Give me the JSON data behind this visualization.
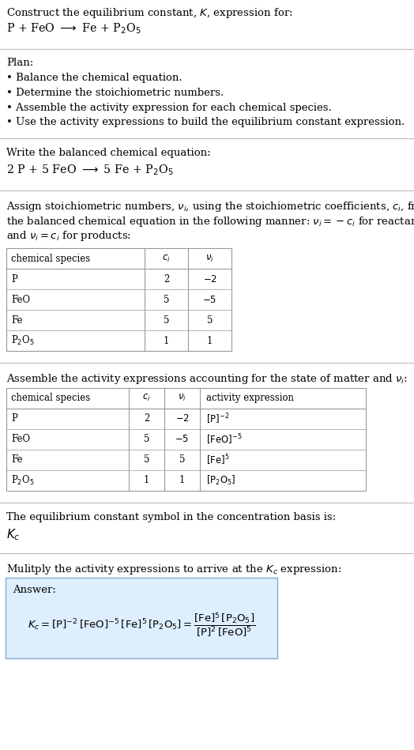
{
  "title_line1": "Construct the equilibrium constant, $K$, expression for:",
  "title_line2": "P + FeO $\\longrightarrow$ Fe + P$_2$O$_5$",
  "plan_header": "Plan:",
  "plan_bullets": [
    "• Balance the chemical equation.",
    "• Determine the stoichiometric numbers.",
    "• Assemble the activity expression for each chemical species.",
    "• Use the activity expressions to build the equilibrium constant expression."
  ],
  "balanced_header": "Write the balanced chemical equation:",
  "balanced_eq": "2 P + 5 FeO $\\longrightarrow$ 5 Fe + P$_2$O$_5$",
  "stoich_lines": [
    "Assign stoichiometric numbers, $\\nu_i$, using the stoichiometric coefficients, $c_i$, from",
    "the balanced chemical equation in the following manner: $\\nu_i = -c_i$ for reactants",
    "and $\\nu_i = c_i$ for products:"
  ],
  "table1_headers": [
    "chemical species",
    "$c_i$",
    "$\\nu_i$"
  ],
  "table1_rows": [
    [
      "P",
      "2",
      "$-2$"
    ],
    [
      "FeO",
      "5",
      "$-5$"
    ],
    [
      "Fe",
      "5",
      "5"
    ],
    [
      "P$_2$O$_5$",
      "1",
      "1"
    ]
  ],
  "activity_header": "Assemble the activity expressions accounting for the state of matter and $\\nu_i$:",
  "table2_headers": [
    "chemical species",
    "$c_i$",
    "$\\nu_i$",
    "activity expression"
  ],
  "table2_rows": [
    [
      "P",
      "2",
      "$-2$",
      "$[\\mathrm{P}]^{-2}$"
    ],
    [
      "FeO",
      "5",
      "$-5$",
      "$[\\mathrm{FeO}]^{-5}$"
    ],
    [
      "Fe",
      "5",
      "5",
      "$[\\mathrm{Fe}]^{5}$"
    ],
    [
      "P$_2$O$_5$",
      "1",
      "1",
      "$[\\mathrm{P_2O_5}]$"
    ]
  ],
  "kc_basis": "The equilibrium constant symbol in the concentration basis is:",
  "kc_symbol": "$K_c$",
  "multiply_header": "Mulitply the activity expressions to arrive at the $K_c$ expression:",
  "answer_label": "Answer:",
  "bg_color": "#ffffff",
  "text_color": "#000000",
  "table_border_color": "#999999",
  "answer_box_color": "#ddeeff",
  "answer_box_border": "#88aacc",
  "separator_color": "#bbbbbb",
  "font_size": 9.5,
  "fig_width": 5.24,
  "fig_height": 9.49,
  "dpi": 100
}
